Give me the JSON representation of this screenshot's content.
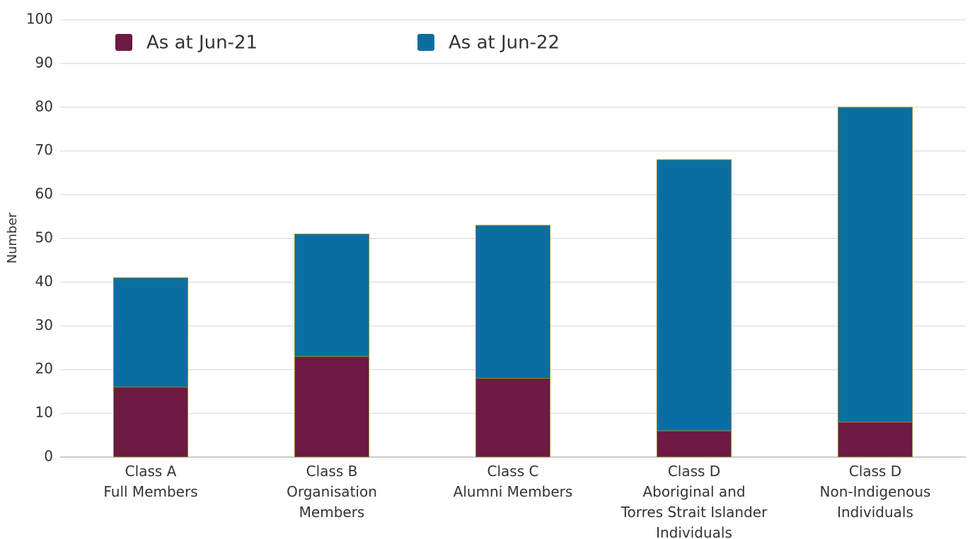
{
  "chart_data": {
    "type": "bar",
    "stacked": true,
    "y_label": "Number",
    "categories": [
      "Class A\nFull Members",
      "Class B\nOrganisation\nMembers",
      "Class C\nAlumni Members",
      "Class D\nAboriginal and\nTorres Strait Islander\nIndividuals",
      "Class D\nNon-Indigenous\nIndividuals"
    ],
    "series": [
      {
        "name": "As at Jun-21",
        "color": "#6d1a45",
        "values": [
          16,
          23,
          18,
          6,
          8
        ]
      },
      {
        "name": "As at Jun-22",
        "color": "#0a6fa0",
        "values": [
          25,
          28,
          35,
          62,
          72
        ]
      }
    ],
    "ylim": [
      0,
      100
    ],
    "yticks": [
      0,
      10,
      20,
      30,
      40,
      50,
      60,
      70,
      80,
      90,
      100
    ],
    "grid": true
  }
}
